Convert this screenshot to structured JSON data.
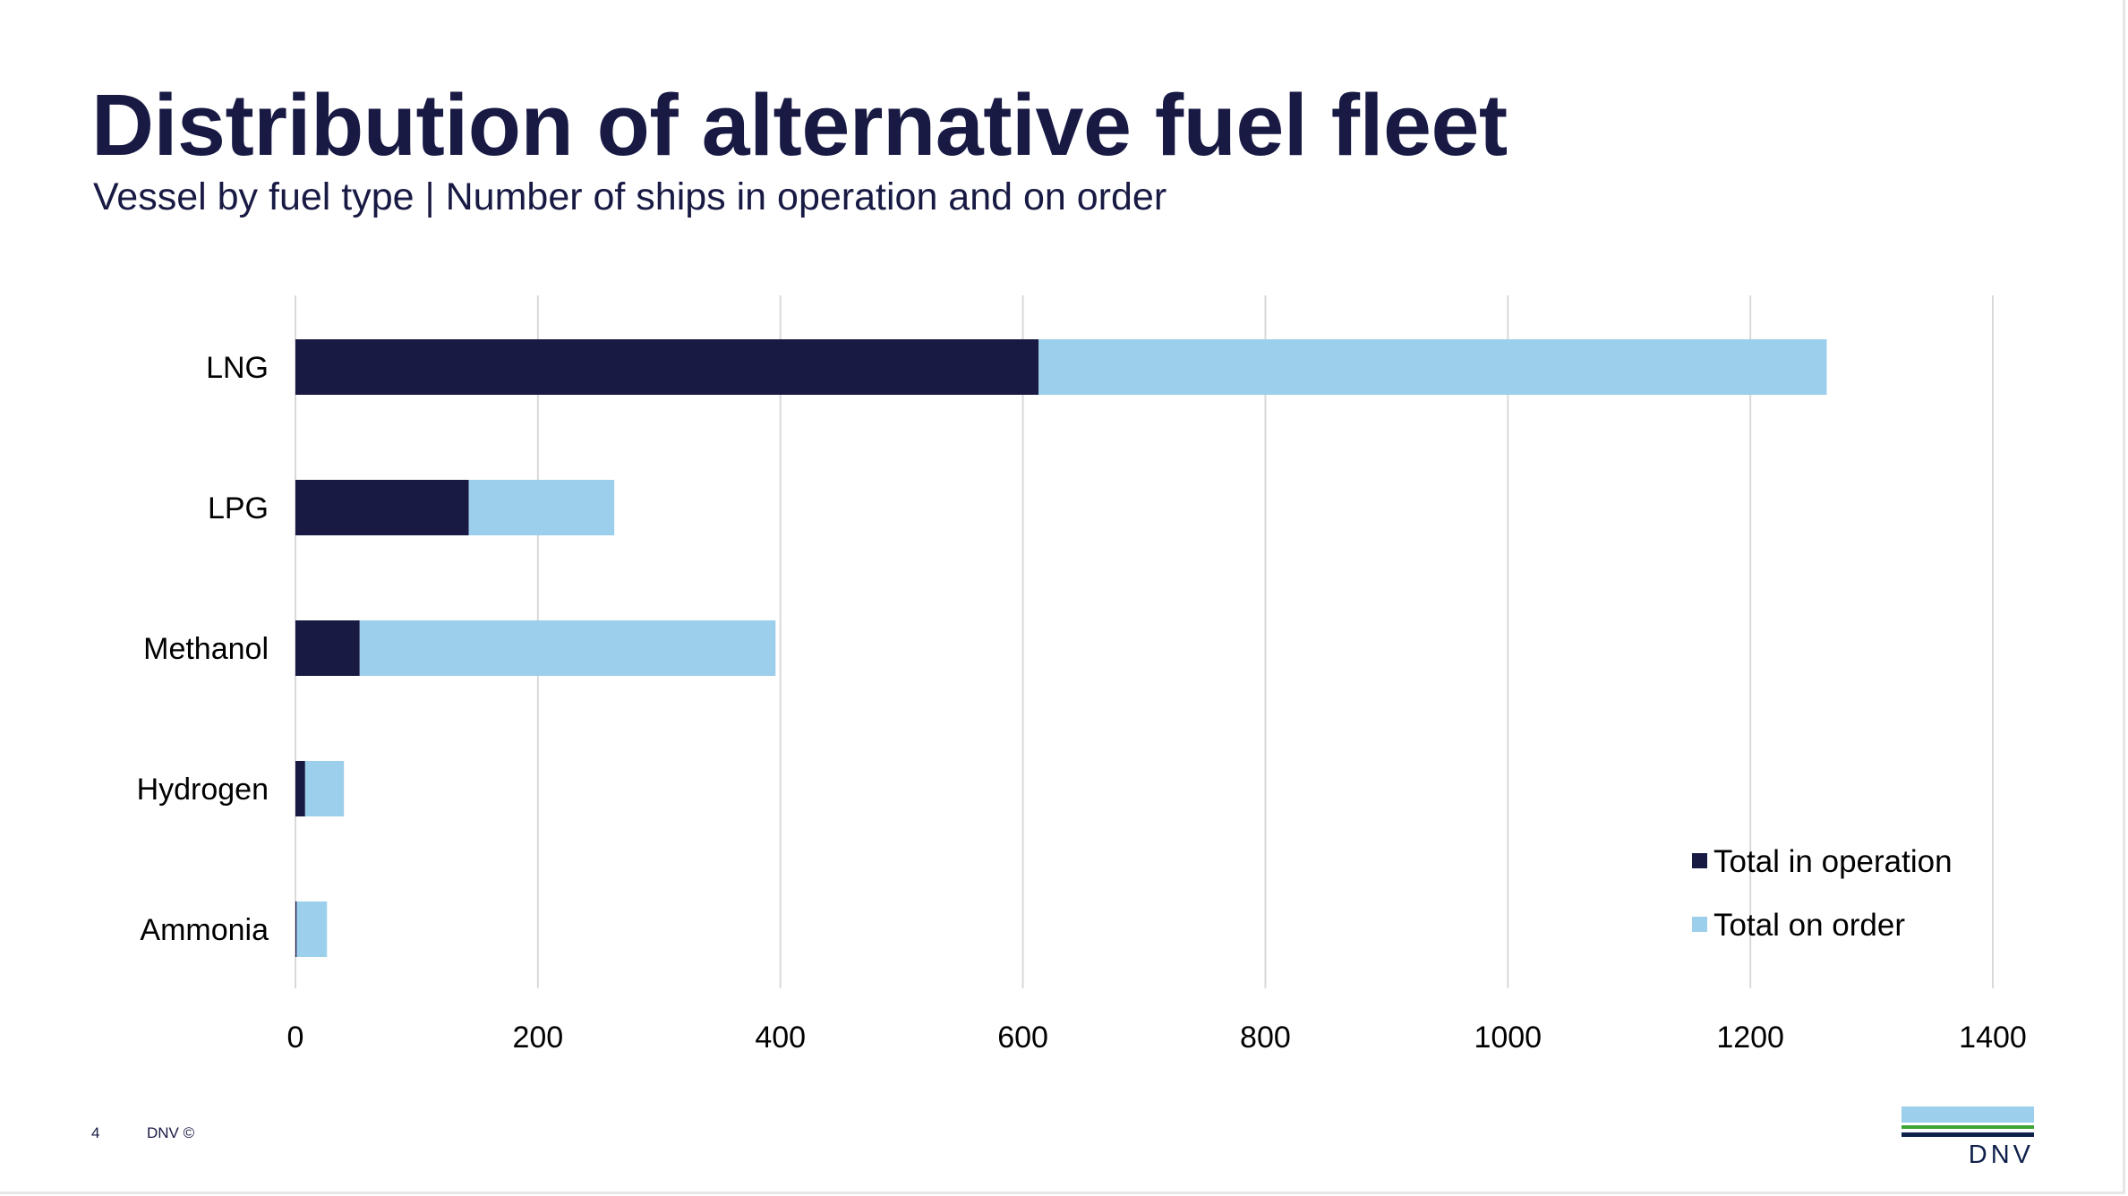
{
  "slide": {
    "title": "Distribution of alternative fuel fleet",
    "subtitle": "Vessel by fuel type | Number of ships in operation and on order",
    "page_number": "4",
    "copyright": "DNV ©",
    "logo_text": "DNV"
  },
  "colors": {
    "title": "#181a44",
    "in_operation": "#181a44",
    "on_order": "#9ccfec",
    "grid": "#d9d9d9"
  },
  "chart_data": {
    "type": "bar",
    "orientation": "horizontal",
    "stacked": true,
    "categories": [
      "LNG",
      "LPG",
      "Methanol",
      "Hydrogen",
      "Ammonia"
    ],
    "series": [
      {
        "name": "Total in operation",
        "color": "#181a44",
        "values": [
          613,
          143,
          53,
          8,
          1
        ]
      },
      {
        "name": "Total on order",
        "color": "#9ccfec",
        "values": [
          650,
          120,
          343,
          32,
          25
        ]
      }
    ],
    "xlim": [
      0,
      1400
    ],
    "xticks": [
      0,
      200,
      400,
      600,
      800,
      1000,
      1200,
      1400
    ],
    "grid": "vertical",
    "legend_position": "bottom-right"
  }
}
